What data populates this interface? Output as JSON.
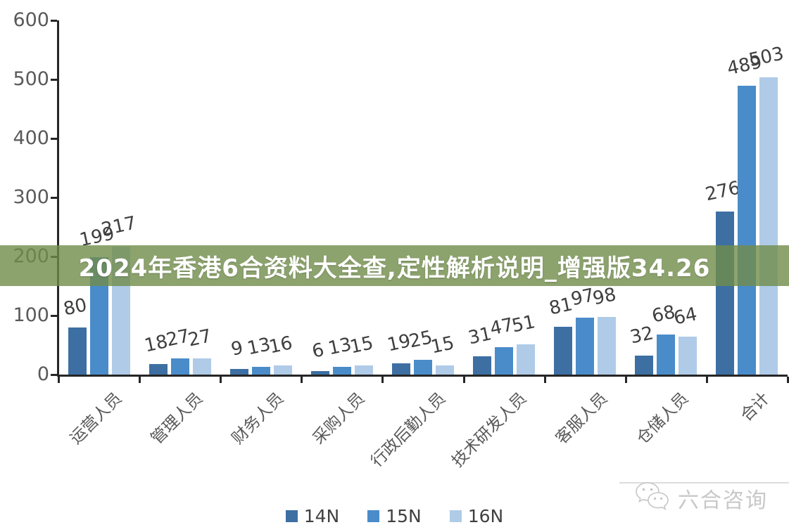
{
  "banner": {
    "text": "2024年香港6合资料大全查,定性解析说明_增强版34.26",
    "bg_color": "#708C4A",
    "bg_opacity": 0.8,
    "text_color": "#FFFFFF"
  },
  "watermark": {
    "icon": "wechat-chat-bubbles-icon",
    "text": "六合咨询",
    "color": "#C8C8C8"
  },
  "chart_data": {
    "type": "bar",
    "title": "",
    "xlabel": "",
    "ylabel": "",
    "categories": [
      "运营人员",
      "管理人员",
      "财务人员",
      "采购人员",
      "行政后勤人员",
      "技术研发人员",
      "客服人员",
      "仓储人员",
      "合计"
    ],
    "series": [
      {
        "name": "14N",
        "color": "#3D6FA3",
        "values": [
          80,
          18,
          9,
          6,
          19,
          31,
          81,
          32,
          276
        ]
      },
      {
        "name": "15N",
        "color": "#4A8CCA",
        "values": [
          199,
          27,
          13,
          13,
          25,
          47,
          97,
          68,
          489
        ]
      },
      {
        "name": "16N",
        "color": "#AFCBE8",
        "values": [
          217,
          27,
          16,
          15,
          15,
          51,
          98,
          64,
          503
        ]
      }
    ],
    "ylim": [
      0,
      600
    ],
    "yticks": [
      0,
      100,
      200,
      300,
      400,
      500,
      600
    ],
    "grid": false,
    "data_labels": true,
    "legend_position": "bottom",
    "axis_color": "#262626",
    "label_color": "#3F3F3F",
    "tick_label_color": "#595959"
  }
}
